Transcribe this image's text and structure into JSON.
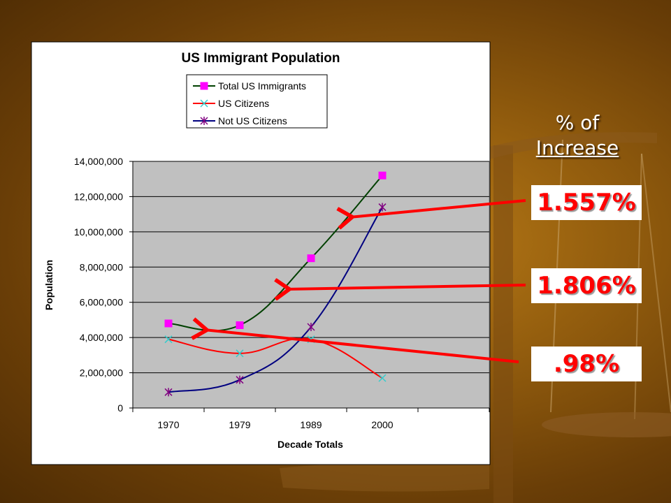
{
  "slide": {
    "header_line1": "% of",
    "header_line2": "Increase",
    "rates": [
      ".98%",
      "1.806%",
      "1.557%"
    ]
  },
  "colors": {
    "plot_area": "#c0c0c0",
    "total_line": "#004000",
    "total_marker": "#ff00ff",
    "citizens_line": "#ff0000",
    "citizens_marker": "#33cccc",
    "noncitizens_line": "#000080",
    "noncitizens_marker": "#800080",
    "arrow": "#ff0000"
  },
  "chart_data": {
    "type": "line",
    "title": "US Immigrant Population",
    "xlabel": "Decade Totals",
    "ylabel": "Population",
    "categories": [
      "1970",
      "1979",
      "1989",
      "2000"
    ],
    "ylim": [
      0,
      14000000
    ],
    "yticks": [
      "0",
      "2,000,000",
      "4,000,000",
      "6,000,000",
      "8,000,000",
      "10,000,000",
      "12,000,000",
      "14,000,000"
    ],
    "grid": true,
    "legend_position": "top",
    "series": [
      {
        "name": "Total US Immigrants",
        "values": [
          4800000,
          4700000,
          8500000,
          13200000
        ]
      },
      {
        "name": "US Citizens",
        "values": [
          3900000,
          3100000,
          3900000,
          1700000
        ]
      },
      {
        "name": "Not US Citizens",
        "values": [
          900000,
          1600000,
          4600000,
          11400000
        ]
      }
    ]
  }
}
